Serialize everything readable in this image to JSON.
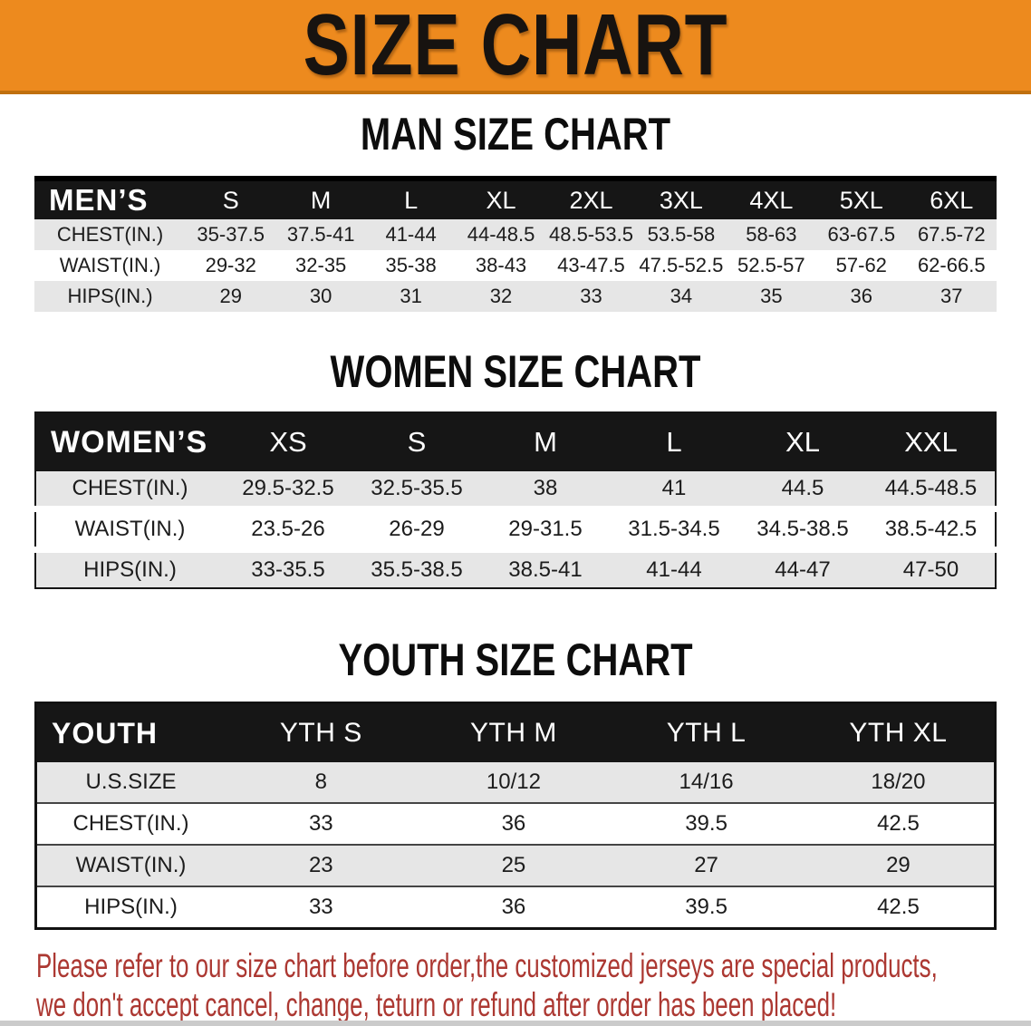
{
  "banner": {
    "title": "SIZE CHART"
  },
  "colors": {
    "banner-orange": "#ED8A1E",
    "banner-edge": "#C0700E",
    "header-black": "#161616",
    "stripe-gray": "#E6E6E6",
    "disclaimer-red": "#AC3832"
  },
  "sections": [
    {
      "heading": "MAN SIZE CHART",
      "table": {
        "corner": "MEN’S",
        "columns": [
          "S",
          "M",
          "L",
          "XL",
          "2XL",
          "3XL",
          "4XL",
          "5XL",
          "6XL"
        ],
        "rows": [
          {
            "label": "CHEST(IN.)",
            "values": [
              "35-37.5",
              "37.5-41",
              "41-44",
              "44-48.5",
              "48.5-53.5",
              "53.5-58",
              "58-63",
              "63-67.5",
              "67.5-72"
            ]
          },
          {
            "label": "WAIST(IN.)",
            "values": [
              "29-32",
              "32-35",
              "35-38",
              "38-43",
              "43-47.5",
              "47.5-52.5",
              "52.5-57",
              "57-62",
              "62-66.5"
            ]
          },
          {
            "label": "HIPS(IN.)",
            "values": [
              "29",
              "30",
              "31",
              "32",
              "33",
              "34",
              "35",
              "36",
              "37"
            ]
          }
        ]
      }
    },
    {
      "heading": "WOMEN SIZE CHART",
      "table": {
        "corner": "WOMEN’S",
        "columns": [
          "XS",
          "S",
          "M",
          "L",
          "XL",
          "XXL"
        ],
        "rows": [
          {
            "label": "CHEST(IN.)",
            "values": [
              "29.5-32.5",
              "32.5-35.5",
              "38",
              "41",
              "44.5",
              "44.5-48.5"
            ]
          },
          {
            "label": "WAIST(IN.)",
            "values": [
              "23.5-26",
              "26-29",
              "29-31.5",
              "31.5-34.5",
              "34.5-38.5",
              "38.5-42.5"
            ]
          },
          {
            "label": "HIPS(IN.)",
            "values": [
              "33-35.5",
              "35.5-38.5",
              "38.5-41",
              "41-44",
              "44-47",
              "47-50"
            ]
          }
        ]
      }
    },
    {
      "heading": "YOUTH SIZE CHART",
      "table": {
        "corner": "YOUTH",
        "columns": [
          "YTH S",
          "YTH M",
          "YTH L",
          "YTH XL"
        ],
        "rows": [
          {
            "label": "U.S.SIZE",
            "values": [
              "8",
              "10/12",
              "14/16",
              "18/20"
            ]
          },
          {
            "label": "CHEST(IN.)",
            "values": [
              "33",
              "36",
              "39.5",
              "42.5"
            ]
          },
          {
            "label": "WAIST(IN.)",
            "values": [
              "23",
              "25",
              "27",
              "29"
            ]
          },
          {
            "label": "HIPS(IN.)",
            "values": [
              "33",
              "36",
              "39.5",
              "42.5"
            ]
          }
        ]
      }
    }
  ],
  "disclaimer": {
    "line1": "Please refer to our size chart before order,the customized jerseys are special products,",
    "line2": "we don't accept cancel, change, teturn or refund after order has been placed!"
  }
}
